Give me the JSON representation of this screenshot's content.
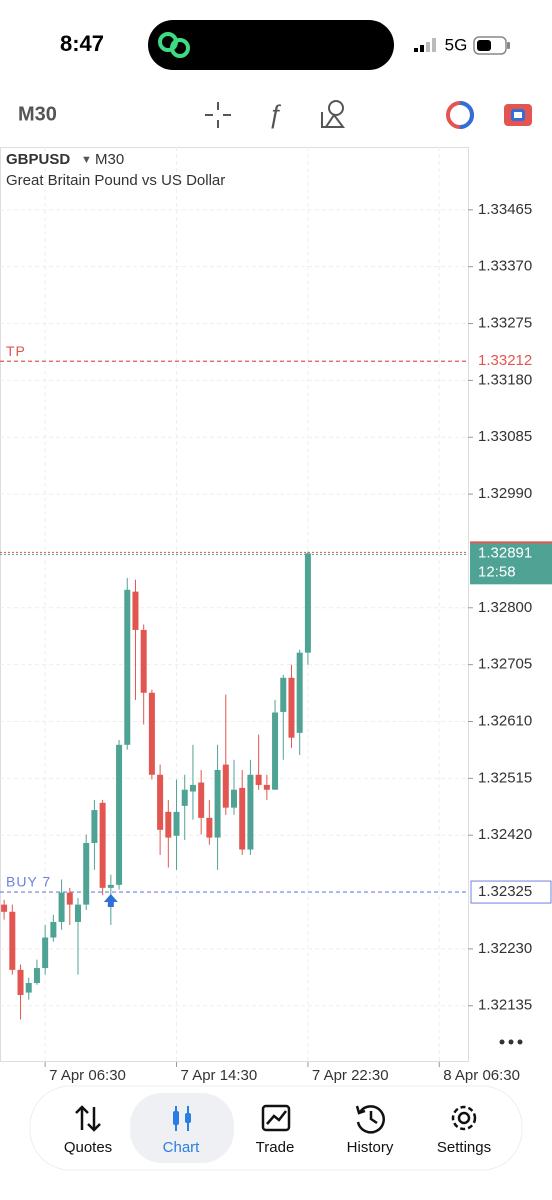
{
  "status_bar": {
    "time": "8:47",
    "network": "5G"
  },
  "toolbar": {
    "timeframe": "M30"
  },
  "chart_data": {
    "type": "candlestick",
    "symbol": "GBPUSD",
    "timeframe": "M30",
    "subtitle": "Great Britain Pound vs US Dollar",
    "categories": [
      null,
      null,
      null,
      null,
      null,
      "7 Apr 06:30",
      null,
      null,
      null,
      null,
      null,
      null,
      null,
      null,
      null,
      null,
      null,
      null,
      null,
      null,
      null,
      "7 Apr 14:30",
      null,
      null,
      null,
      null,
      null,
      null,
      null,
      null,
      null,
      null,
      null,
      null,
      null,
      null,
      null,
      "7 Apr 22:30",
      null,
      null,
      null,
      null,
      null,
      null,
      null,
      null,
      null,
      null,
      null,
      null,
      null,
      null,
      null,
      "8 Apr 06:30",
      null,
      null,
      null
    ],
    "open": [
      1.32304,
      1.32292,
      1.32195,
      1.32157,
      1.32173,
      1.32198,
      1.32249,
      1.32275,
      1.32324,
      1.32275,
      1.32304,
      1.32407,
      1.32474,
      1.32332,
      1.32337,
      1.32571,
      1.32827,
      1.32763,
      1.32658,
      1.32521,
      1.32459,
      1.32419,
      1.32469,
      1.32493,
      1.32508,
      1.32449,
      1.32416,
      1.32538,
      1.32466,
      1.32499,
      1.32396,
      1.32521,
      1.32504,
      1.32496,
      1.32626,
      1.32683,
      1.32591,
      1.32725,
      null,
      null,
      null,
      null,
      null,
      null,
      null,
      null,
      null,
      null,
      null,
      null,
      null,
      null,
      null,
      null,
      null,
      null,
      null
    ],
    "high": [
      1.32312,
      1.32304,
      1.32204,
      1.32182,
      1.32212,
      1.3227,
      1.32287,
      1.32346,
      1.32332,
      1.32315,
      1.32421,
      1.32479,
      1.32479,
      1.32354,
      1.32579,
      1.3285,
      1.32847,
      1.32772,
      1.32663,
      1.32538,
      1.32479,
      1.32513,
      1.32521,
      1.32571,
      1.32529,
      1.32479,
      1.32571,
      1.32655,
      1.32546,
      1.32529,
      1.32546,
      1.32588,
      1.32521,
      1.32646,
      1.32688,
      1.32705,
      1.3273,
      1.32894,
      null,
      null,
      null,
      null,
      null,
      null,
      null,
      null,
      null,
      null,
      null,
      null,
      null,
      null,
      null,
      null,
      null,
      null,
      null
    ],
    "low": [
      1.32279,
      1.32187,
      1.32112,
      1.32145,
      1.3217,
      1.32187,
      1.32242,
      1.32262,
      1.3227,
      1.32187,
      1.32295,
      1.32362,
      1.3232,
      1.3227,
      1.32329,
      1.32563,
      1.32646,
      1.32605,
      1.32513,
      1.32387,
      1.32366,
      1.32362,
      1.32412,
      1.32446,
      1.32421,
      1.32404,
      1.32362,
      1.32454,
      1.32454,
      1.32387,
      1.32387,
      1.32496,
      1.32479,
      1.32496,
      1.32546,
      1.32566,
      1.32554,
      1.32705,
      null,
      null,
      null,
      null,
      null,
      null,
      null,
      null,
      null,
      null,
      null,
      null,
      null,
      null,
      null,
      null,
      null,
      null,
      null
    ],
    "close": [
      1.32292,
      1.32195,
      1.32153,
      1.32173,
      1.32198,
      1.32249,
      1.32275,
      1.32324,
      1.32304,
      1.32304,
      1.32407,
      1.32462,
      1.32332,
      1.32337,
      1.32571,
      1.3283,
      1.32763,
      1.32658,
      1.32521,
      1.32429,
      1.32416,
      1.32459,
      1.32496,
      1.32504,
      1.32449,
      1.32416,
      1.32529,
      1.32466,
      1.32496,
      1.32396,
      1.32521,
      1.32504,
      1.32496,
      1.32625,
      1.32683,
      1.32583,
      1.32725,
      1.32891,
      null,
      null,
      null,
      null,
      null,
      null,
      null,
      null,
      null,
      null,
      null,
      null,
      null,
      null,
      null,
      null,
      null,
      null,
      null
    ],
    "up_color": "#4fa395",
    "down_color": "#e25550",
    "ylim": [
      1.32041,
      1.3357
    ],
    "yticks": [
      1.33465,
      {
        "value": 1.3337,
        "label": "1.33370"
      },
      1.33275,
      {
        "value": 1.3318,
        "label": "1.33180"
      },
      1.33085,
      {
        "value": 1.3299,
        "label": "1.32990"
      },
      {
        "value": 1.328,
        "label": "1.32800"
      },
      1.32705,
      {
        "value": 1.3261,
        "label": "1.32610"
      },
      1.32515,
      {
        "value": 1.3242,
        "label": "1.32420"
      },
      {
        "value": 1.3223,
        "label": "1.32230"
      },
      1.32135
    ],
    "grid": true,
    "price_lines": [
      {
        "label": "TP",
        "value": 1.33212,
        "color": "#e25550"
      },
      {
        "label": "BUY 7",
        "value": 1.32325,
        "color": "#6f80e0"
      }
    ],
    "current_price": {
      "value": 1.32891,
      "countdown": "12:58"
    }
  },
  "tab_bar": {
    "tabs": [
      "Quotes",
      "Chart",
      "Trade",
      "History",
      "Settings"
    ],
    "active": 1
  }
}
